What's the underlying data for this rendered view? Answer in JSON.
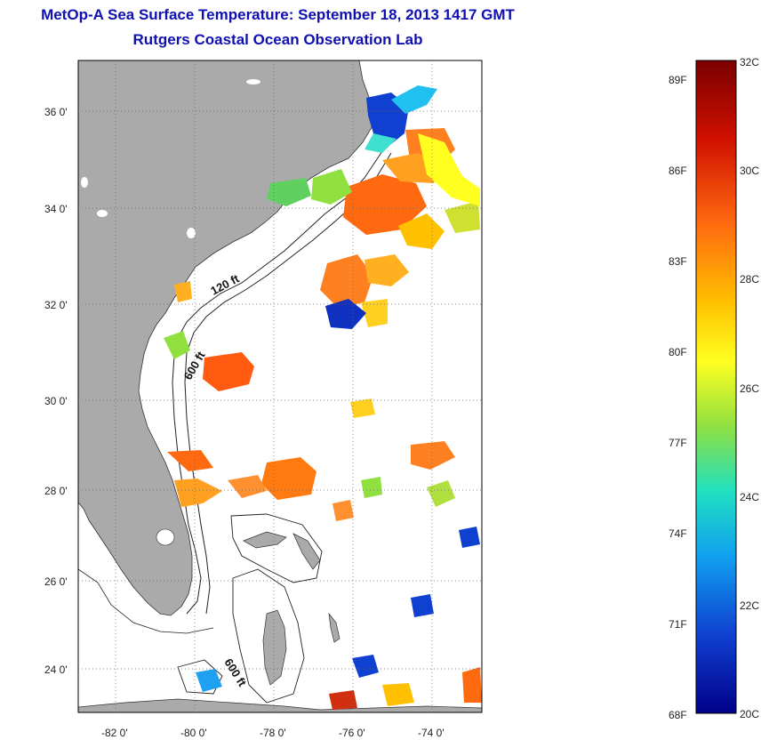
{
  "title": "MetOp-A Sea Surface Temperature:  September 18, 2013 1417 GMT",
  "subtitle": "Rutgers Coastal Ocean Observation Lab",
  "map": {
    "lat_ticks": [
      "36 0'",
      "34 0'",
      "32 0'",
      "30 0'",
      "28 0'",
      "26 0'",
      "24 0'"
    ],
    "lon_ticks": [
      "-82 0'",
      "-80 0'",
      "-78 0'",
      "-76 0'",
      "-74 0'"
    ],
    "land_color": "#aaaaaa",
    "contour_labels": [
      "120 ft",
      "600 ft",
      "600 ft"
    ]
  },
  "colorbar": {
    "celsius_labels": [
      "32C",
      "30C",
      "28C",
      "26C",
      "24C",
      "22C",
      "20C"
    ],
    "fahrenheit_labels": [
      "89F",
      "86F",
      "83F",
      "80F",
      "77F",
      "74F",
      "71F",
      "68F"
    ],
    "colors": [
      "#7a0000",
      "#d01000",
      "#ff6a10",
      "#ffc000",
      "#ffff20",
      "#90e040",
      "#20e0c0",
      "#10a0f0",
      "#1040d0",
      "#00008a"
    ]
  }
}
